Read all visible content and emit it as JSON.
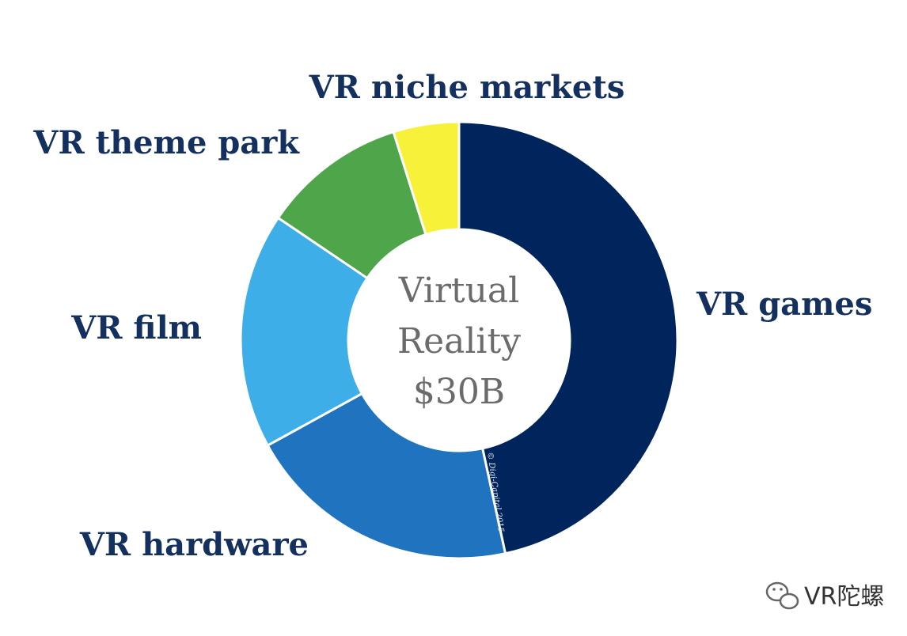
{
  "chart_data": {
    "type": "pie",
    "variant": "donut",
    "center_label": [
      "Virtual",
      "Reality",
      "$30B"
    ],
    "categories": [
      "VR games",
      "VR hardware",
      "VR film",
      "VR theme park",
      "VR niche markets"
    ],
    "values": [
      48,
      21,
      18,
      11,
      5
    ],
    "colors": [
      "#00245c",
      "#1f73bf",
      "#3eaee8",
      "#4fa54a",
      "#f7f13a"
    ],
    "copyright": "© Digi-Capital 2015"
  },
  "watermark": {
    "text": "VR陀螺",
    "icon": "wechat-icon"
  }
}
